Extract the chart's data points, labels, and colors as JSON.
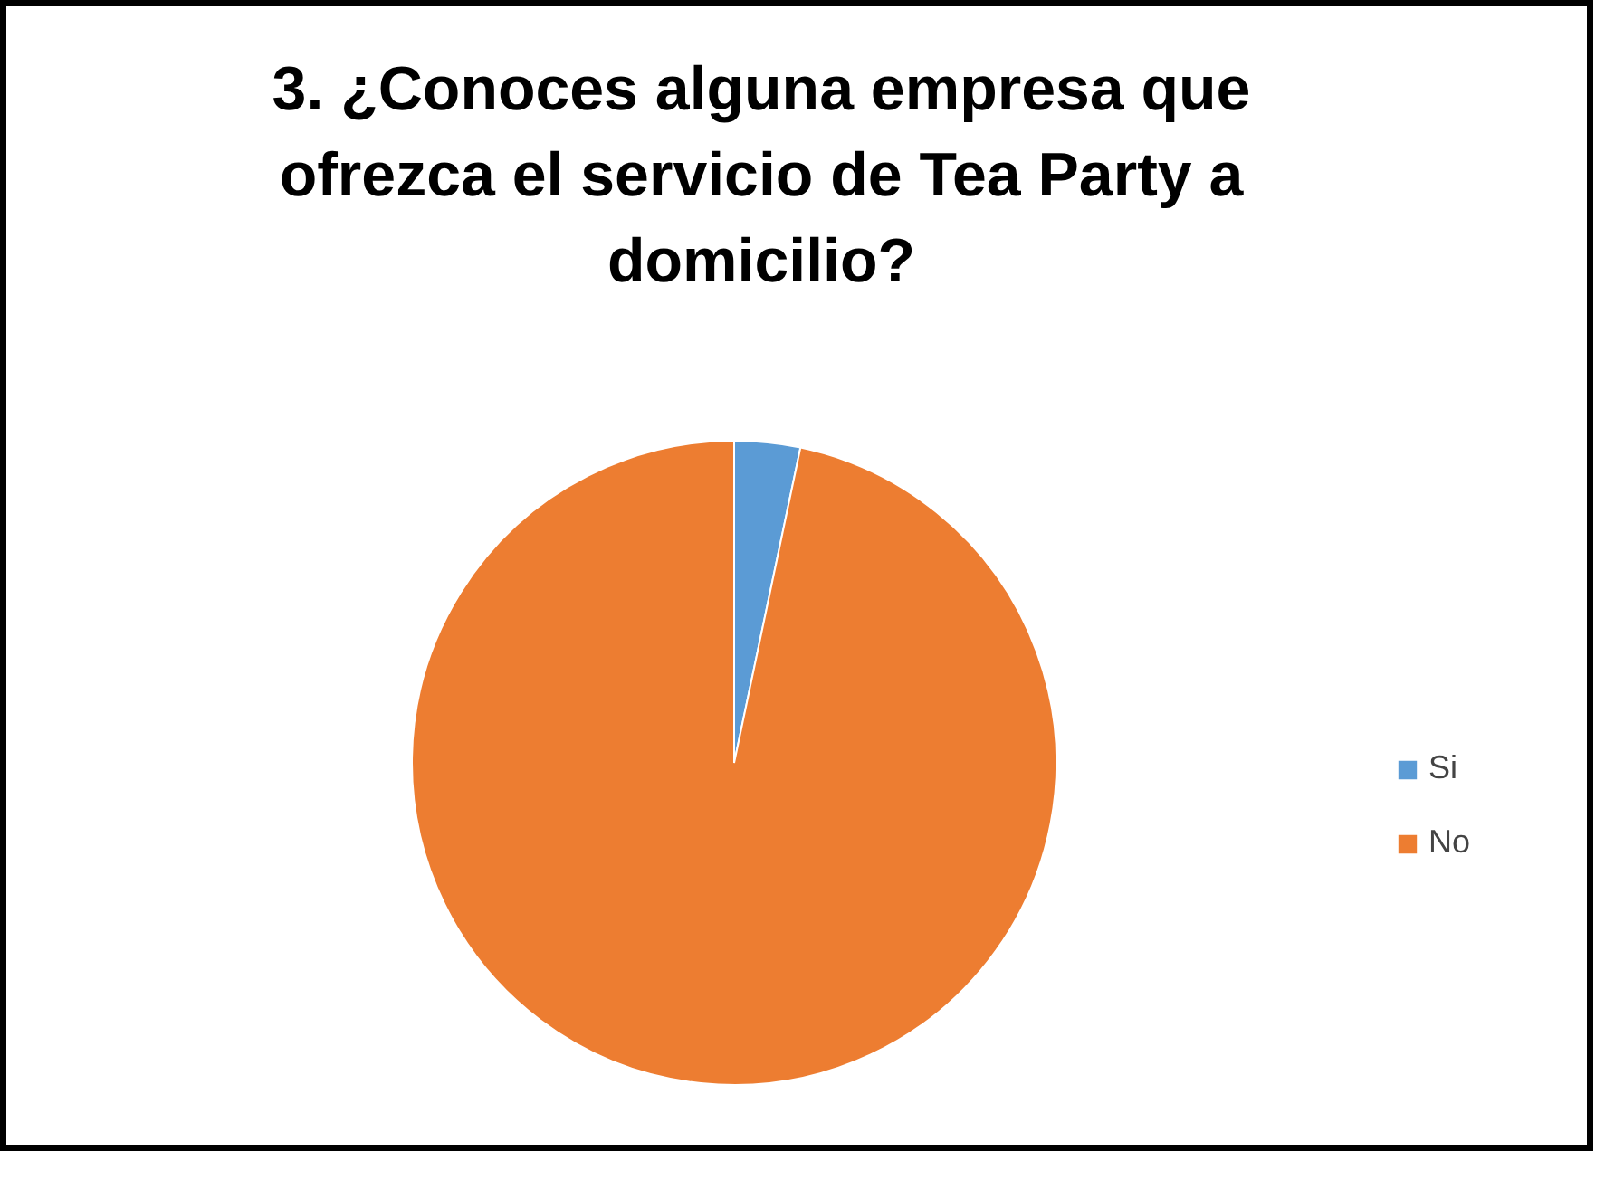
{
  "chart_data": {
    "type": "pie",
    "title": "3. ¿Conoces alguna empresa que ofrezca el servicio de Tea Party a domicilio?",
    "categories": [
      "Si",
      "No"
    ],
    "values": [
      3.3,
      96.7
    ],
    "colors": [
      "#5b9bd5",
      "#ed7d31"
    ],
    "legend": "right"
  }
}
